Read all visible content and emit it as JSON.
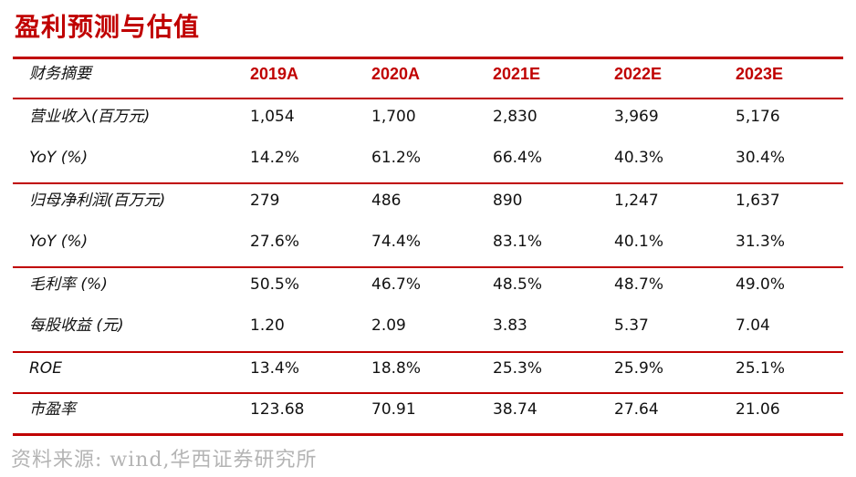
{
  "title": "盈利预测与估值",
  "table": {
    "header": {
      "label": "财务摘要",
      "years": [
        "2019A",
        "2020A",
        "2021E",
        "2022E",
        "2023E"
      ]
    },
    "rows": [
      {
        "label": "营业收入(百万元)",
        "values": [
          "1,054",
          "1,700",
          "2,830",
          "3,969",
          "5,176"
        ]
      },
      {
        "label": "YoY (%)",
        "values": [
          "14.2%",
          "61.2%",
          "66.4%",
          "40.3%",
          "30.4%"
        ]
      },
      {
        "label": "归母净利润(百万元)",
        "values": [
          "279",
          "486",
          "890",
          "1,247",
          "1,637"
        ]
      },
      {
        "label": "YoY (%)",
        "values": [
          "27.6%",
          "74.4%",
          "83.1%",
          "40.1%",
          "31.3%"
        ]
      },
      {
        "label": "毛利率 (%)",
        "values": [
          "50.5%",
          "46.7%",
          "48.5%",
          "48.7%",
          "49.0%"
        ]
      },
      {
        "label": "每股收益 (元)",
        "values": [
          "1.20",
          "2.09",
          "3.83",
          "5.37",
          "7.04"
        ]
      },
      {
        "label": "ROE",
        "values": [
          "13.4%",
          "18.8%",
          "25.3%",
          "25.9%",
          "25.1%"
        ]
      },
      {
        "label": "市盈率",
        "values": [
          "123.68",
          "70.91",
          "38.74",
          "27.64",
          "21.06"
        ]
      }
    ]
  },
  "source": "资料来源: wind,华西证券研究所",
  "colors": {
    "accent": "#C00000",
    "source_text": "#b4b4b4"
  }
}
